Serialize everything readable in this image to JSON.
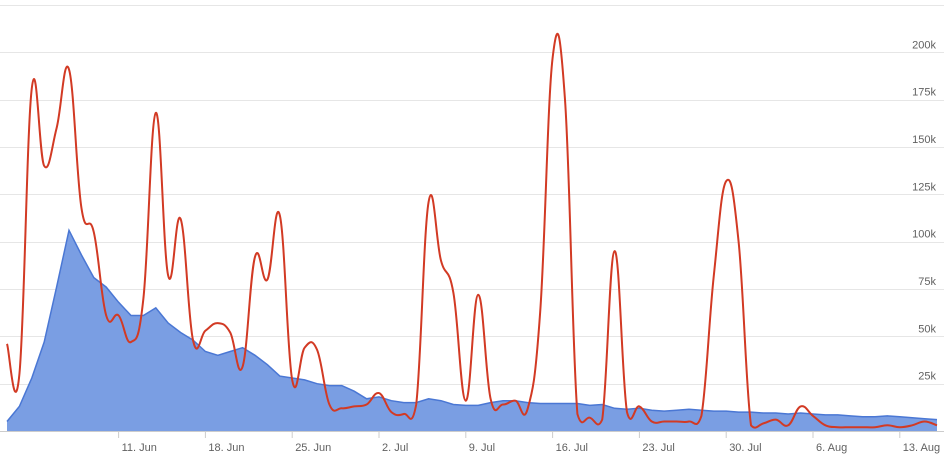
{
  "chart_data": {
    "type": "area",
    "title": "",
    "xlabel": "",
    "ylabel": "",
    "ylim": [
      0,
      225000
    ],
    "y_ticks": [
      25000,
      50000,
      75000,
      100000,
      125000,
      150000,
      175000,
      200000
    ],
    "y_tick_labels": [
      "25k",
      "50k",
      "75k",
      "100k",
      "125k",
      "150k",
      "175k",
      "200k"
    ],
    "y_axis_side": "right",
    "grid": true,
    "x_ticks": [
      "11. Jun",
      "18. Jun",
      "25. Jun",
      "2. Jul",
      "9. Jul",
      "16. Jul",
      "23. Jul",
      "30. Jul",
      "6. Aug",
      "13. Aug"
    ],
    "colors": {
      "area_fill": "#7a9ee3",
      "area_line": "#4a77d4",
      "line": "#d23a24",
      "grid": "#e6e6e6",
      "tick_text": "#616161"
    },
    "series": [
      {
        "type": "area",
        "x": [
          "2. Jun",
          "3. Jun",
          "4. Jun",
          "5. Jun",
          "6. Jun",
          "7. Jun",
          "8. Jun",
          "9. Jun",
          "10. Jun",
          "11. Jun",
          "12. Jun",
          "13. Jun",
          "14. Jun",
          "15. Jun",
          "16. Jun",
          "17. Jun",
          "18. Jun",
          "19. Jun",
          "20. Jun",
          "21. Jun",
          "22. Jun",
          "23. Jun",
          "24. Jun",
          "25. Jun",
          "26. Jun",
          "27. Jun",
          "28. Jun",
          "29. Jun",
          "30. Jun",
          "1. Jul",
          "2. Jul",
          "3. Jul",
          "4. Jul",
          "5. Jul",
          "6. Jul",
          "7. Jul",
          "8. Jul",
          "9. Jul",
          "10. Jul",
          "11. Jul",
          "12. Jul",
          "13. Jul",
          "14. Jul",
          "15. Jul",
          "16. Jul",
          "17. Jul",
          "18. Jul",
          "19. Jul",
          "20. Jul",
          "21. Jul",
          "22. Jul",
          "23. Jul",
          "24. Jul",
          "25. Jul",
          "26. Jul",
          "27. Jul",
          "28. Jul",
          "29. Jul",
          "30. Jul",
          "31. Jul",
          "1. Aug",
          "2. Aug",
          "3. Aug",
          "4. Aug",
          "5. Aug",
          "6. Aug",
          "7. Aug",
          "8. Aug",
          "9. Aug",
          "10. Aug",
          "11. Aug",
          "12. Aug",
          "13. Aug",
          "14. Aug",
          "15. Aug",
          "16. Aug"
        ],
        "values": [
          5000,
          13000,
          28000,
          47000,
          76000,
          106000,
          93000,
          81000,
          76000,
          68000,
          61000,
          61000,
          65000,
          57000,
          52000,
          48000,
          42000,
          40000,
          42000,
          44000,
          40000,
          35000,
          29000,
          28000,
          27000,
          25000,
          24000,
          24000,
          21000,
          17000,
          18000,
          16000,
          15000,
          15000,
          17000,
          16000,
          14000,
          13500,
          13500,
          15000,
          16000,
          16000,
          15000,
          14500,
          14500,
          14500,
          14500,
          13500,
          14000,
          12000,
          11500,
          12000,
          11000,
          10500,
          11000,
          11500,
          11000,
          10500,
          10500,
          10000,
          10000,
          9500,
          9500,
          9000,
          9500,
          9000,
          8500,
          8500,
          8000,
          7500,
          7500,
          8000,
          7500,
          7000,
          6500,
          6000
        ]
      },
      {
        "type": "line",
        "x": [
          "2. Jun",
          "3. Jun",
          "4. Jun",
          "5. Jun",
          "6. Jun",
          "7. Jun",
          "8. Jun",
          "9. Jun",
          "10. Jun",
          "11. Jun",
          "12. Jun",
          "13. Jun",
          "14. Jun",
          "15. Jun",
          "16. Jun",
          "17. Jun",
          "18. Jun",
          "19. Jun",
          "20. Jun",
          "21. Jun",
          "22. Jun",
          "23. Jun",
          "24. Jun",
          "25. Jun",
          "26. Jun",
          "27. Jun",
          "28. Jun",
          "29. Jun",
          "30. Jun",
          "1. Jul",
          "2. Jul",
          "3. Jul",
          "4. Jul",
          "5. Jul",
          "6. Jul",
          "7. Jul",
          "8. Jul",
          "9. Jul",
          "10. Jul",
          "11. Jul",
          "12. Jul",
          "13. Jul",
          "14. Jul",
          "15. Jul",
          "16. Jul",
          "17. Jul",
          "18. Jul",
          "19. Jul",
          "20. Jul",
          "21. Jul",
          "22. Jul",
          "23. Jul",
          "24. Jul",
          "25. Jul",
          "26. Jul",
          "27. Jul",
          "28. Jul",
          "29. Jul",
          "30. Jul",
          "31. Jul",
          "1. Aug",
          "2. Aug",
          "3. Aug",
          "4. Aug",
          "5. Aug",
          "6. Aug",
          "7. Aug",
          "8. Aug",
          "9. Aug",
          "10. Aug",
          "11. Aug",
          "12. Aug",
          "13. Aug",
          "14. Aug",
          "15. Aug",
          "16. Aug"
        ],
        "values": [
          46000,
          30000,
          181000,
          140000,
          160000,
          191000,
          118000,
          105000,
          61000,
          61000,
          47000,
          70000,
          168000,
          82000,
          112000,
          48000,
          53000,
          57000,
          52000,
          34000,
          92000,
          80000,
          114000,
          27000,
          44000,
          43000,
          14000,
          12000,
          13000,
          14000,
          20000,
          10000,
          9000,
          14000,
          121000,
          90000,
          73000,
          16000,
          72000,
          17000,
          14000,
          16000,
          12000,
          63000,
          197000,
          175000,
          9000,
          7000,
          6000,
          95000,
          10000,
          13000,
          5000,
          5000,
          5000,
          5000,
          8000,
          82000,
          132000,
          100000,
          3000,
          4000,
          6000,
          3000,
          13000,
          8000,
          3000,
          2000,
          2000,
          2000,
          2000,
          3000,
          2000,
          3000,
          5000,
          3000
        ]
      }
    ]
  }
}
